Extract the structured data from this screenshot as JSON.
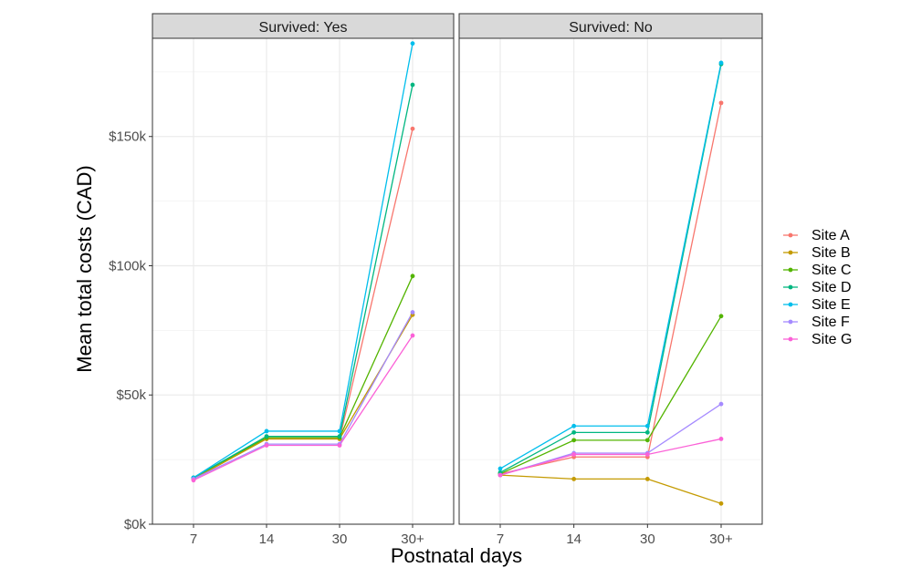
{
  "chart_data": {
    "type": "line",
    "xlabel": "Postnatal days",
    "ylabel": "Mean total costs (CAD)",
    "categories": [
      "7",
      "14",
      "30",
      "30+"
    ],
    "y_ticks": [
      0,
      50000,
      100000,
      150000
    ],
    "y_tick_labels": [
      "$0k",
      "$50k",
      "$100k",
      "$150k"
    ],
    "ylim": [
      0,
      188000
    ],
    "grid": true,
    "legend_position": "right",
    "panels": [
      {
        "title": "Survived: Yes",
        "series": [
          {
            "name": "Site A",
            "color": "#F8766D",
            "values": [
              17500,
              33000,
              33000,
              153000
            ]
          },
          {
            "name": "Site B",
            "color": "#C49A00",
            "values": [
              17500,
              33000,
              33000,
              81000
            ]
          },
          {
            "name": "Site C",
            "color": "#53B400",
            "values": [
              18000,
              33500,
              33500,
              96000
            ]
          },
          {
            "name": "Site D",
            "color": "#00B680",
            "values": [
              18000,
              34000,
              34000,
              170000
            ]
          },
          {
            "name": "Site E",
            "color": "#00BEEC",
            "values": [
              18000,
              36000,
              36000,
              186000
            ]
          },
          {
            "name": "Site F",
            "color": "#A58AFF",
            "values": [
              17500,
              31000,
              31000,
              82000
            ]
          },
          {
            "name": "Site G",
            "color": "#FB61D7",
            "values": [
              17000,
              30500,
              30500,
              73000
            ]
          }
        ]
      },
      {
        "title": "Survived: No",
        "series": [
          {
            "name": "Site A",
            "color": "#F8766D",
            "values": [
              19500,
              26000,
              26000,
              163000
            ]
          },
          {
            "name": "Site B",
            "color": "#C49A00",
            "values": [
              19000,
              17500,
              17500,
              8000
            ]
          },
          {
            "name": "Site C",
            "color": "#53B400",
            "values": [
              19500,
              32500,
              32500,
              80500
            ]
          },
          {
            "name": "Site D",
            "color": "#00B680",
            "values": [
              20000,
              35500,
              35500,
              178000
            ]
          },
          {
            "name": "Site E",
            "color": "#00BEEC",
            "values": [
              21500,
              38000,
              38000,
              178500
            ]
          },
          {
            "name": "Site F",
            "color": "#A58AFF",
            "values": [
              19000,
              27500,
              27500,
              46500
            ]
          },
          {
            "name": "Site G",
            "color": "#FB61D7",
            "values": [
              19000,
              27000,
              27000,
              33000
            ]
          }
        ]
      }
    ]
  }
}
